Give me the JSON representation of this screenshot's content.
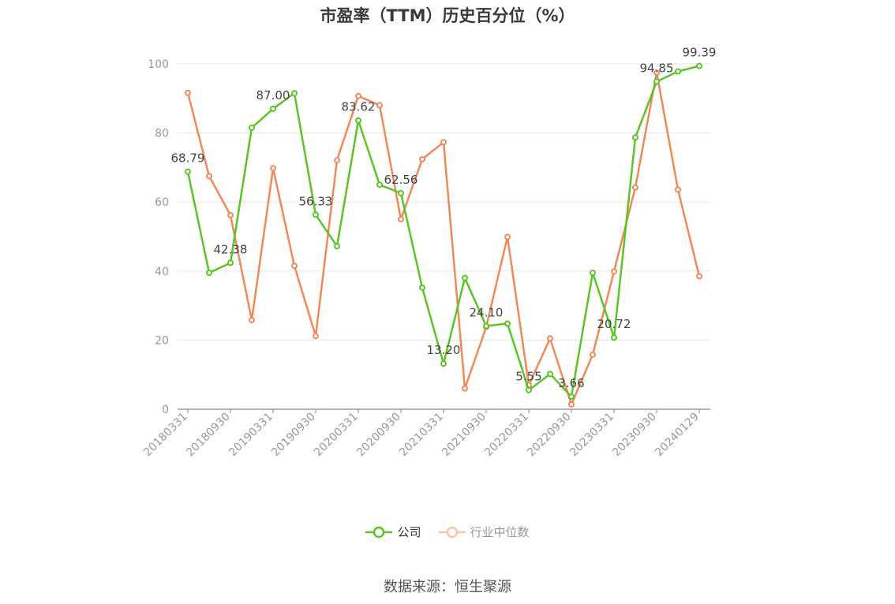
{
  "chart_data": {
    "type": "line",
    "title": "市盈率（TTM）历史百分位（%）",
    "source": "数据来源：恒生聚源",
    "ylim": [
      0,
      100
    ],
    "yticks": [
      0,
      20,
      40,
      60,
      80,
      100
    ],
    "xtick_labels": [
      "20180331",
      "20180930",
      "20190331",
      "20190930",
      "20200331",
      "20200930",
      "20210331",
      "20210930",
      "20220331",
      "20220930",
      "20230331",
      "20230930",
      "20240129"
    ],
    "x": [
      "20180331",
      "20180630",
      "20180930",
      "20181231",
      "20190331",
      "20190630",
      "20190930",
      "20191231",
      "20200331",
      "20200630",
      "20200930",
      "20201231",
      "20210331",
      "20210630",
      "20210930",
      "20211231",
      "20220331",
      "20220630",
      "20220930",
      "20221231",
      "20230331",
      "20230630",
      "20230930",
      "20231231",
      "20240129"
    ],
    "series": [
      {
        "name": "公司",
        "color": "#5cc426",
        "values": [
          68.79,
          39.5,
          42.38,
          81.5,
          87.0,
          91.5,
          56.33,
          47.2,
          83.62,
          65.0,
          62.56,
          35.2,
          13.2,
          38.0,
          24.1,
          24.8,
          5.55,
          10.2,
          3.66,
          39.5,
          20.72,
          78.7,
          94.85,
          97.8,
          99.39
        ],
        "labels": [
          "68.79",
          "",
          "42.38",
          "",
          "87.00",
          "",
          "56.33",
          "",
          "83.62",
          "",
          "62.56",
          "",
          "13.20",
          "",
          "24.10",
          "",
          "5.55",
          "",
          "3.66",
          "",
          "20.72",
          "",
          "94.85",
          "",
          "99.39"
        ]
      },
      {
        "name": "行业中位数",
        "color": "#f0895a",
        "values": [
          91.6,
          67.5,
          56.2,
          25.8,
          69.8,
          41.5,
          21.2,
          72.1,
          90.7,
          88.0,
          55.0,
          72.4,
          77.3,
          6.0,
          23.8,
          49.9,
          7.0,
          20.5,
          1.4,
          15.8,
          39.9,
          64.2,
          97.5,
          63.6,
          38.5
        ]
      }
    ],
    "legend": {
      "position": "bottom-center",
      "items": [
        "公司",
        "行业中位数"
      ]
    },
    "grid": true
  }
}
